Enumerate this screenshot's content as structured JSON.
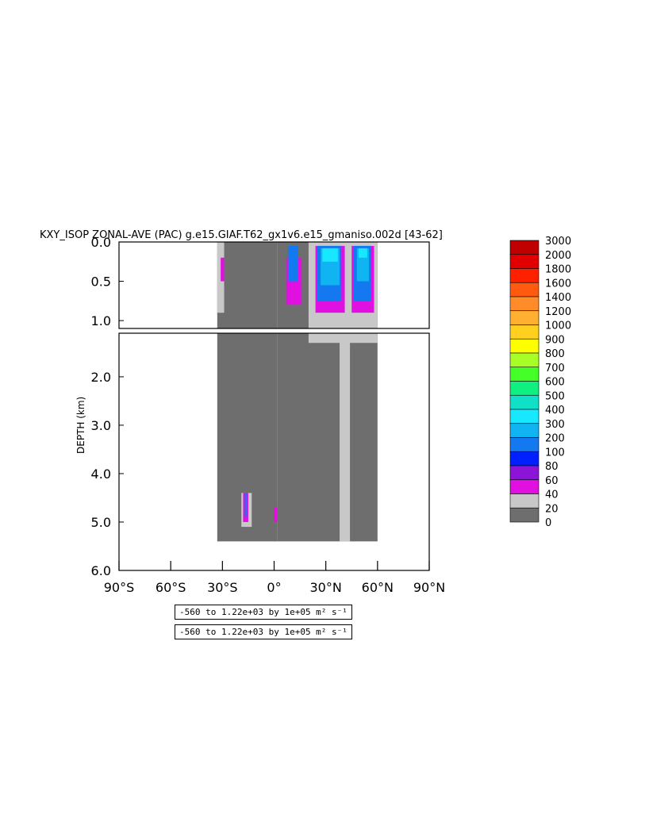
{
  "chart_data": {
    "type": "heatmap",
    "title": "KXY_ISOP ZONAL-AVE (PAC) g.e15.GIAF.T62_gx1v6.e15_gmaniso.002d [43-62]",
    "ylabel": "DEPTH (km)",
    "xlabel": "",
    "x_tick_labels": [
      "90°S",
      "60°S",
      "30°S",
      "0°",
      "30°N",
      "60°N",
      "90°N"
    ],
    "xlim": [
      -90,
      90
    ],
    "y_tick_labels_upper": [
      "0.0",
      "0.5",
      "1.0"
    ],
    "y_tick_labels_lower": [
      "2.0",
      "3.0",
      "4.0",
      "5.0",
      "6.0"
    ],
    "ylim": [
      0,
      6
    ],
    "upper_panel_ylim": [
      0,
      1.1
    ],
    "lower_panel_ylim": [
      1.1,
      6
    ],
    "colorbar_labels": [
      "3000",
      "2000",
      "1800",
      "1600",
      "1400",
      "1200",
      "1000",
      "900",
      "800",
      "700",
      "600",
      "500",
      "400",
      "300",
      "200",
      "100",
      "80",
      "60",
      "40",
      "20",
      "0"
    ],
    "colorbar_colors": [
      "#c00000",
      "#e00000",
      "#ff2000",
      "#ff5a10",
      "#ff8c28",
      "#ffb030",
      "#ffd020",
      "#ffff00",
      "#a8ff28",
      "#44ff28",
      "#10f080",
      "#10e0c8",
      "#18e8ff",
      "#10b4f0",
      "#1478f0",
      "#0020ff",
      "#8c14d8",
      "#e010e0",
      "#c8c8c8",
      "#6e6e6e"
    ],
    "regions": [
      {
        "x0": -33,
        "x1": 2,
        "y0": 0,
        "y1": 5.4,
        "c": 0
      },
      {
        "x0": 2,
        "x1": 60,
        "y0": 0,
        "y1": 5.4,
        "c": 0
      },
      {
        "x0": 20,
        "x1": 60,
        "y0": 0,
        "y1": 1.3,
        "c": 1
      },
      {
        "x0": 38,
        "x1": 44,
        "y0": 1.1,
        "y1": 5.4,
        "c": 1
      },
      {
        "x0": -33,
        "x1": -29,
        "y0": 0,
        "y1": 0.9,
        "c": 1
      },
      {
        "x0": -19,
        "x1": -13,
        "y0": 4.4,
        "y1": 5.1,
        "c": 1
      },
      {
        "x0": 7,
        "x1": 16,
        "y0": 0.2,
        "y1": 0.8,
        "c": 2
      },
      {
        "x0": 24,
        "x1": 41,
        "y0": 0.05,
        "y1": 0.9,
        "c": 2
      },
      {
        "x0": 45,
        "x1": 58,
        "y0": 0.05,
        "y1": 0.9,
        "c": 2
      },
      {
        "x0": -31,
        "x1": -29,
        "y0": 0.2,
        "y1": 0.5,
        "c": 2
      },
      {
        "x0": -18,
        "x1": -15,
        "y0": 4.4,
        "y1": 5.0,
        "c": 2
      },
      {
        "x0": 0,
        "x1": 2,
        "y0": 4.7,
        "y1": 5.0,
        "c": 2
      },
      {
        "x0": 8,
        "x1": 14,
        "y0": 0.05,
        "y1": 0.5,
        "c": 3
      },
      {
        "x0": 25,
        "x1": 39,
        "y0": 0.05,
        "y1": 0.75,
        "c": 3
      },
      {
        "x0": 46,
        "x1": 56,
        "y0": 0.05,
        "y1": 0.75,
        "c": 3
      },
      {
        "x0": -17,
        "x1": -16,
        "y0": 4.4,
        "y1": 4.9,
        "c": 3
      },
      {
        "x0": 27,
        "x1": 38,
        "y0": 0.08,
        "y1": 0.55,
        "c": 4
      },
      {
        "x0": 48,
        "x1": 55,
        "y0": 0.08,
        "y1": 0.5,
        "c": 4
      },
      {
        "x0": 28,
        "x1": 37,
        "y0": 0.08,
        "y1": 0.25,
        "c": 5
      },
      {
        "x0": 49,
        "x1": 54,
        "y0": 0.08,
        "y1": 0.2,
        "c": 5
      }
    ],
    "region_colors": [
      "#6e6e6e",
      "#c8c8c8",
      "#e010e0",
      "#1478f0",
      "#10b4f0",
      "#18e8ff"
    ]
  },
  "notes": [
    "-560 to 1.22e+03 by 1e+05 m² s⁻¹",
    "-560 to 1.22e+03 by 1e+05 m² s⁻¹"
  ]
}
